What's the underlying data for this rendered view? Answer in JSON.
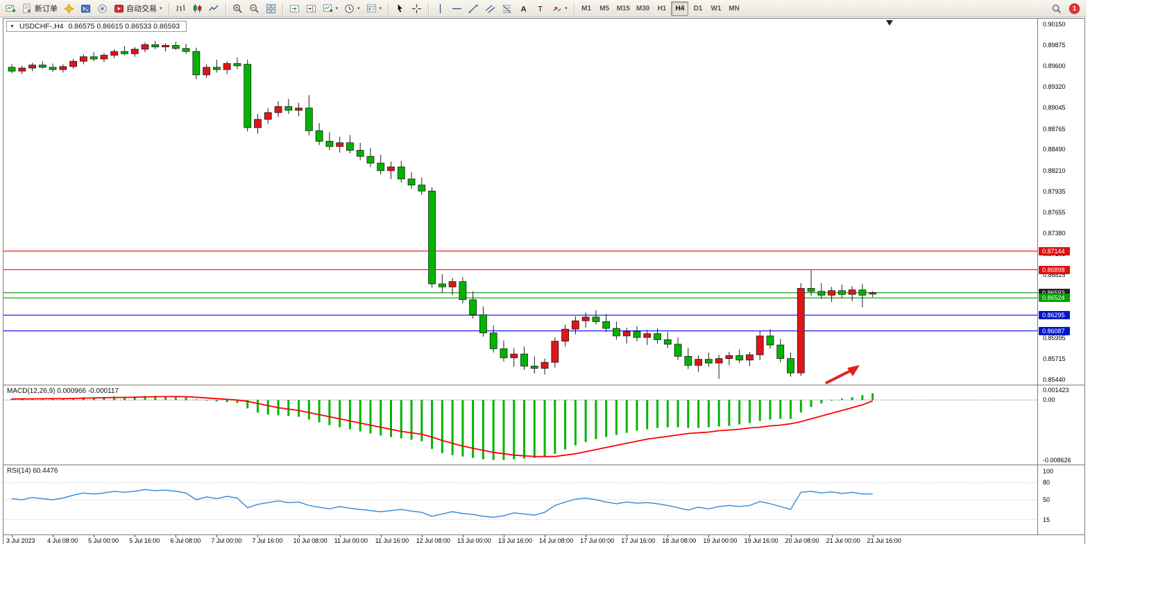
{
  "window": {
    "title_symbol": "USDCHF-,H4",
    "title_ohlc": "0.86575 0.86615 0.86533 0.86593"
  },
  "toolbar": {
    "groups": [
      {
        "items": [
          {
            "name": "new-chart-button",
            "icon": "chart-plus"
          },
          {
            "name": "new-order-button",
            "icon": "new-order",
            "label": "新订单"
          },
          {
            "name": "navigator-button",
            "icon": "navigator"
          },
          {
            "name": "terminal-button",
            "icon": "terminal"
          },
          {
            "name": "market-watch-button",
            "icon": "market"
          },
          {
            "name": "auto-trading-button",
            "icon": "auto-trading",
            "label": "自动交易",
            "caret": true
          }
        ]
      },
      {
        "items": [
          {
            "name": "bar-chart-button",
            "icon": "bars"
          },
          {
            "name": "candlestick-button",
            "icon": "candles"
          },
          {
            "name": "line-chart-button",
            "icon": "line"
          }
        ]
      },
      {
        "items": [
          {
            "name": "zoom-in-button",
            "icon": "zoom-in"
          },
          {
            "name": "zoom-out-button",
            "icon": "zoom-out"
          },
          {
            "name": "tile-windows-button",
            "icon": "tile"
          }
        ]
      },
      {
        "items": [
          {
            "name": "auto-scroll-button",
            "icon": "autoscroll"
          },
          {
            "name": "chart-shift-button",
            "icon": "shift"
          },
          {
            "name": "indicators-button",
            "icon": "indicators",
            "caret": true
          },
          {
            "name": "periods-button",
            "icon": "clock",
            "caret": true
          },
          {
            "name": "templates-button",
            "icon": "template",
            "caret": true
          }
        ]
      },
      {
        "items": [
          {
            "name": "cursor-button",
            "icon": "cursor"
          },
          {
            "name": "crosshair-button",
            "icon": "crosshair"
          }
        ]
      },
      {
        "items": [
          {
            "name": "vertical-line-button",
            "icon": "vline"
          },
          {
            "name": "horizontal-line-button",
            "icon": "hline"
          },
          {
            "name": "trendline-button",
            "icon": "trend"
          },
          {
            "name": "channel-button",
            "icon": "channel"
          },
          {
            "name": "fibonacci-button",
            "icon": "fibo"
          },
          {
            "name": "text-button",
            "icon": "text"
          },
          {
            "name": "label-button",
            "icon": "label"
          },
          {
            "name": "arrows-button",
            "icon": "arrows",
            "caret": true
          }
        ]
      }
    ],
    "timeframes": [
      "M1",
      "M5",
      "M15",
      "M30",
      "H1",
      "H4",
      "D1",
      "W1",
      "MN"
    ],
    "active_timeframe": "H4",
    "notification_count": "1"
  },
  "chart": {
    "colors": {
      "up": "#e01515",
      "down": "#00b400",
      "outline": "#1c1c1c"
    },
    "price_axis": {
      "max": 0.9015,
      "min": 0.8544,
      "ticks": [
        "0.90150",
        "0.89875",
        "0.89600",
        "0.89320",
        "0.89045",
        "0.88765",
        "0.88490",
        "0.88210",
        "0.87935",
        "0.87655",
        "0.87380",
        "0.87105",
        "0.86825",
        "0.86550",
        "0.86270",
        "0.85995",
        "0.85715",
        "0.85440"
      ]
    },
    "levels": [
      {
        "price": 0.87144,
        "label": "0.87144",
        "line": "#ff1a1a",
        "badge": "#df1010"
      },
      {
        "price": 0.86898,
        "label": "0.86898",
        "line": "#ff1a1a",
        "badge": "#df1010"
      },
      {
        "price": 0.86593,
        "label": "0.86593",
        "line": "#009500",
        "badge": "#222222"
      },
      {
        "price": 0.86524,
        "label": "0.86524",
        "line": "#009500",
        "badge": "#00a000"
      },
      {
        "price": 0.86295,
        "label": "0.86295",
        "line": "#0000ee",
        "badge": "#0018c8"
      },
      {
        "price": 0.86087,
        "label": "0.86087",
        "line": "#0000ee",
        "badge": "#0018c8"
      }
    ],
    "candles": [
      [
        0.8958,
        0.8962,
        0.895,
        0.8953
      ],
      [
        0.8953,
        0.896,
        0.8949,
        0.8957
      ],
      [
        0.8957,
        0.8964,
        0.8953,
        0.8961
      ],
      [
        0.8961,
        0.8966,
        0.8956,
        0.8958
      ],
      [
        0.8958,
        0.8963,
        0.8952,
        0.8955
      ],
      [
        0.8955,
        0.8962,
        0.8951,
        0.8959
      ],
      [
        0.8959,
        0.8969,
        0.8956,
        0.8966
      ],
      [
        0.8966,
        0.8975,
        0.8962,
        0.8972
      ],
      [
        0.8972,
        0.8978,
        0.8966,
        0.8969
      ],
      [
        0.8969,
        0.8977,
        0.8965,
        0.8974
      ],
      [
        0.8974,
        0.8982,
        0.897,
        0.8979
      ],
      [
        0.8979,
        0.8986,
        0.8974,
        0.8976
      ],
      [
        0.8976,
        0.8985,
        0.8972,
        0.8982
      ],
      [
        0.8982,
        0.8991,
        0.8978,
        0.8988
      ],
      [
        0.8988,
        0.8993,
        0.8982,
        0.8985
      ],
      [
        0.8985,
        0.899,
        0.8979,
        0.8987
      ],
      [
        0.8987,
        0.8992,
        0.8981,
        0.8983
      ],
      [
        0.8983,
        0.8989,
        0.8976,
        0.8979
      ],
      [
        0.8979,
        0.8984,
        0.8942,
        0.8948
      ],
      [
        0.8948,
        0.8962,
        0.8944,
        0.8958
      ],
      [
        0.8958,
        0.8968,
        0.8951,
        0.8955
      ],
      [
        0.8955,
        0.8966,
        0.8949,
        0.8963
      ],
      [
        0.8963,
        0.8971,
        0.8956,
        0.896
      ],
      [
        0.8962,
        0.8968,
        0.8873,
        0.8878
      ],
      [
        0.8878,
        0.8896,
        0.887,
        0.8889
      ],
      [
        0.8889,
        0.8904,
        0.8883,
        0.8898
      ],
      [
        0.8898,
        0.8913,
        0.8892,
        0.8906
      ],
      [
        0.8906,
        0.8916,
        0.8896,
        0.8901
      ],
      [
        0.8901,
        0.8911,
        0.8893,
        0.8904
      ],
      [
        0.8904,
        0.8921,
        0.8868,
        0.8874
      ],
      [
        0.8874,
        0.8884,
        0.8855,
        0.886
      ],
      [
        0.886,
        0.8872,
        0.8848,
        0.8853
      ],
      [
        0.8853,
        0.8866,
        0.8845,
        0.8858
      ],
      [
        0.8858,
        0.8868,
        0.8844,
        0.8848
      ],
      [
        0.8848,
        0.8858,
        0.8835,
        0.884
      ],
      [
        0.884,
        0.8851,
        0.8826,
        0.8831
      ],
      [
        0.8831,
        0.8842,
        0.8816,
        0.8821
      ],
      [
        0.8821,
        0.8833,
        0.881,
        0.8826
      ],
      [
        0.8826,
        0.8834,
        0.8805,
        0.881
      ],
      [
        0.881,
        0.8819,
        0.8797,
        0.8802
      ],
      [
        0.8802,
        0.8812,
        0.8789,
        0.8794
      ],
      [
        0.8794,
        0.8799,
        0.8666,
        0.8671
      ],
      [
        0.8671,
        0.8684,
        0.8659,
        0.8667
      ],
      [
        0.8667,
        0.8679,
        0.8656,
        0.8674
      ],
      [
        0.8674,
        0.868,
        0.8645,
        0.865
      ],
      [
        0.865,
        0.8661,
        0.8625,
        0.863
      ],
      [
        0.863,
        0.8641,
        0.8601,
        0.8606
      ],
      [
        0.8606,
        0.8616,
        0.858,
        0.8585
      ],
      [
        0.8585,
        0.8596,
        0.8568,
        0.8573
      ],
      [
        0.8573,
        0.8586,
        0.8561,
        0.8578
      ],
      [
        0.8578,
        0.8588,
        0.8557,
        0.8562
      ],
      [
        0.8562,
        0.8575,
        0.8552,
        0.8559
      ],
      [
        0.8559,
        0.8572,
        0.8551,
        0.8567
      ],
      [
        0.8567,
        0.86,
        0.856,
        0.8595
      ],
      [
        0.8595,
        0.8617,
        0.8588,
        0.8611
      ],
      [
        0.8611,
        0.8628,
        0.8604,
        0.8622
      ],
      [
        0.8622,
        0.8633,
        0.8613,
        0.8627
      ],
      [
        0.8627,
        0.8636,
        0.8617,
        0.8621
      ],
      [
        0.8621,
        0.8631,
        0.8607,
        0.8612
      ],
      [
        0.8612,
        0.8621,
        0.8597,
        0.8602
      ],
      [
        0.8602,
        0.8613,
        0.8592,
        0.8608
      ],
      [
        0.8608,
        0.8615,
        0.8595,
        0.86
      ],
      [
        0.86,
        0.861,
        0.859,
        0.8605
      ],
      [
        0.8605,
        0.8612,
        0.8592,
        0.8597
      ],
      [
        0.8597,
        0.8607,
        0.8586,
        0.8591
      ],
      [
        0.8591,
        0.86,
        0.857,
        0.8575
      ],
      [
        0.8575,
        0.8586,
        0.8558,
        0.8563
      ],
      [
        0.8563,
        0.8576,
        0.8554,
        0.8571
      ],
      [
        0.8571,
        0.858,
        0.8561,
        0.8566
      ],
      [
        0.8566,
        0.8577,
        0.8545,
        0.8572
      ],
      [
        0.8572,
        0.8581,
        0.8563,
        0.8576
      ],
      [
        0.8576,
        0.8584,
        0.8566,
        0.857
      ],
      [
        0.857,
        0.8581,
        0.8562,
        0.8577
      ],
      [
        0.8577,
        0.8609,
        0.857,
        0.8602
      ],
      [
        0.8602,
        0.8611,
        0.8585,
        0.859
      ],
      [
        0.859,
        0.8598,
        0.8567,
        0.8572
      ],
      [
        0.8572,
        0.858,
        0.8548,
        0.8553
      ],
      [
        0.8553,
        0.8672,
        0.8549,
        0.8665
      ],
      [
        0.8665,
        0.8689,
        0.8655,
        0.8661
      ],
      [
        0.8661,
        0.8672,
        0.8651,
        0.8656
      ],
      [
        0.8656,
        0.8667,
        0.8647,
        0.8662
      ],
      [
        0.8662,
        0.867,
        0.8652,
        0.8657
      ],
      [
        0.8657,
        0.8668,
        0.8648,
        0.8663
      ],
      [
        0.8663,
        0.8671,
        0.864,
        0.8656
      ],
      [
        0.86575,
        0.86615,
        0.86533,
        0.86593
      ]
    ]
  },
  "macd": {
    "label": "MACD(12,26,9) 0.000966 -0.000117",
    "axis": {
      "max": 0.001423,
      "min": -0.008626,
      "ticks": [
        {
          "v": 0.001423,
          "t": "0.001423"
        },
        {
          "v": 0,
          "t": "0.00"
        },
        {
          "v": -0.008626,
          "t": "-0.008626"
        }
      ]
    },
    "colors": {
      "histogram": "#00b400",
      "signal": "#ff0000"
    },
    "histogram": [
      0.0002,
      0.00015,
      0.0002,
      0.00025,
      0.0002,
      0.00015,
      0.0003,
      0.0004,
      0.0004,
      0.00045,
      0.0005,
      0.00045,
      0.0005,
      0.0006,
      0.0006,
      0.00055,
      0.0005,
      0.0004,
      0.0001,
      -0.0001,
      -0.0002,
      -0.0003,
      -0.0004,
      -0.0012,
      -0.0018,
      -0.0021,
      -0.0022,
      -0.0023,
      -0.0024,
      -0.0028,
      -0.0032,
      -0.0036,
      -0.0039,
      -0.0042,
      -0.0045,
      -0.0048,
      -0.0051,
      -0.0053,
      -0.0055,
      -0.0057,
      -0.0059,
      -0.007,
      -0.0076,
      -0.0079,
      -0.0081,
      -0.0083,
      -0.0085,
      -0.0086,
      -0.0086,
      -0.0085,
      -0.0084,
      -0.0083,
      -0.0082,
      -0.0077,
      -0.0071,
      -0.0065,
      -0.006,
      -0.0056,
      -0.0053,
      -0.005,
      -0.0047,
      -0.0044,
      -0.0042,
      -0.004,
      -0.0039,
      -0.0039,
      -0.004,
      -0.004,
      -0.0039,
      -0.0038,
      -0.0037,
      -0.0035,
      -0.0033,
      -0.003,
      -0.0028,
      -0.0027,
      -0.0027,
      -0.0018,
      -0.001,
      -0.0005,
      -0.0001,
      0.0002,
      0.0004,
      0.0007,
      0.000966
    ],
    "signal": [
      0.00015,
      0.00016,
      0.00017,
      0.00019,
      0.0002,
      0.0002,
      0.00022,
      0.00026,
      0.0003,
      0.00033,
      0.00036,
      0.00038,
      0.0004,
      0.00044,
      0.00047,
      0.00049,
      0.0005,
      0.00048,
      0.0004,
      0.0003,
      0.0002,
      0.0001,
      0.0,
      -0.0002,
      -0.0005,
      -0.0008,
      -0.0011,
      -0.0013,
      -0.0015,
      -0.0018,
      -0.0021,
      -0.0024,
      -0.0027,
      -0.003,
      -0.0033,
      -0.0036,
      -0.0039,
      -0.0042,
      -0.0045,
      -0.0047,
      -0.0049,
      -0.0053,
      -0.0058,
      -0.0062,
      -0.0066,
      -0.0069,
      -0.0072,
      -0.0075,
      -0.0077,
      -0.0079,
      -0.008,
      -0.0081,
      -0.0081,
      -0.0081,
      -0.0079,
      -0.0077,
      -0.0074,
      -0.0071,
      -0.0068,
      -0.0065,
      -0.0062,
      -0.0059,
      -0.0056,
      -0.0054,
      -0.0052,
      -0.005,
      -0.0048,
      -0.0047,
      -0.0046,
      -0.0044,
      -0.0043,
      -0.0042,
      -0.004,
      -0.0039,
      -0.0037,
      -0.0036,
      -0.0034,
      -0.0031,
      -0.0027,
      -0.0023,
      -0.0019,
      -0.0015,
      -0.0011,
      -0.0007,
      -0.00012
    ]
  },
  "rsi": {
    "label": "RSI(14) 60.4476",
    "color": "#3c8edd",
    "levels": [
      80,
      50,
      15
    ],
    "axis": {
      "ticks": [
        {
          "v": 100,
          "t": "100"
        },
        {
          "v": 80,
          "t": "80"
        },
        {
          "v": 50,
          "t": "50"
        },
        {
          "v": 15,
          "t": "15"
        }
      ]
    },
    "values": [
      52,
      50,
      54,
      52,
      50,
      53,
      58,
      62,
      60,
      62,
      65,
      63,
      65,
      68,
      66,
      67,
      65,
      62,
      50,
      55,
      52,
      56,
      53,
      36,
      42,
      45,
      48,
      45,
      46,
      40,
      37,
      34,
      38,
      35,
      33,
      31,
      29,
      31,
      33,
      30,
      28,
      21,
      25,
      29,
      26,
      24,
      21,
      19,
      22,
      27,
      25,
      23,
      28,
      40,
      46,
      51,
      53,
      50,
      46,
      43,
      46,
      44,
      45,
      43,
      40,
      36,
      32,
      37,
      34,
      38,
      40,
      38,
      40,
      47,
      43,
      38,
      33,
      63,
      65,
      62,
      64,
      61,
      63,
      60,
      60.4
    ]
  },
  "time_axis": {
    "labels": [
      "3 Jul 2023",
      "4 Jul 08:00",
      "5 Jul 00:00",
      "5 Jul 16:00",
      "6 Jul 08:00",
      "7 Jul 00:00",
      "7 Jul 16:00",
      "10 Jul 08:00",
      "11 Jul 00:00",
      "11 Jul 16:00",
      "12 Jul 08:00",
      "13 Jul 00:00",
      "13 Jul 16:00",
      "14 Jul 08:00",
      "17 Jul 00:00",
      "17 Jul 16:00",
      "18 Jul 08:00",
      "19 Jul 00:00",
      "19 Jul 16:00",
      "20 Jul 08:00",
      "21 Jul 00:00",
      "21 Jul 16:00"
    ]
  },
  "annotation_arrow": {
    "color": "#e02020"
  }
}
